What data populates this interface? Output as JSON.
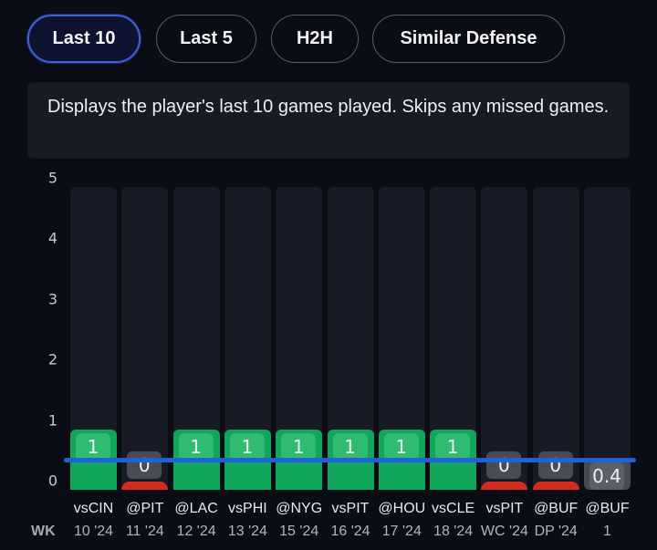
{
  "tabs": [
    {
      "label": "Last 10",
      "active": true
    },
    {
      "label": "Last 5",
      "active": false
    },
    {
      "label": "H2H",
      "active": false
    },
    {
      "label": "Similar Defense",
      "active": false
    }
  ],
  "description": "Displays the player's last 10 games played. Skips any missed games.",
  "colors": {
    "hit": "#12a55c",
    "miss": "#d42a1f",
    "line": "#1d62d6",
    "active_tab_border": "#3d63d6"
  },
  "wk_label": "WK",
  "chart_data": {
    "type": "bar",
    "title": "",
    "xlabel": "",
    "ylabel": "",
    "ylim": [
      0,
      5
    ],
    "yticks": [
      "0",
      "1",
      "2",
      "3",
      "4",
      "5"
    ],
    "line_value": 0.5,
    "categories": [
      {
        "opponent": "vsCIN",
        "week": "10 '24"
      },
      {
        "opponent": "@PIT",
        "week": "11 '24"
      },
      {
        "opponent": "@LAC",
        "week": "12 '24"
      },
      {
        "opponent": "vsPHI",
        "week": "13 '24"
      },
      {
        "opponent": "@NYG",
        "week": "15 '24"
      },
      {
        "opponent": "vsPIT",
        "week": "16 '24"
      },
      {
        "opponent": "@HOU",
        "week": "17 '24"
      },
      {
        "opponent": "vsCLE",
        "week": "18 '24"
      },
      {
        "opponent": "vsPIT",
        "week": "WC '24"
      },
      {
        "opponent": "@BUF",
        "week": "DP '24"
      },
      {
        "opponent": "@BUF",
        "week": "1"
      }
    ],
    "values": [
      1,
      0,
      1,
      1,
      1,
      1,
      1,
      1,
      0,
      0,
      0.4
    ],
    "value_labels": [
      "1",
      "0",
      "1",
      "1",
      "1",
      "1",
      "1",
      "1",
      "0",
      "0",
      "0.4"
    ],
    "status": [
      "hit",
      "miss",
      "hit",
      "hit",
      "hit",
      "hit",
      "hit",
      "hit",
      "miss",
      "miss",
      "projection"
    ]
  }
}
